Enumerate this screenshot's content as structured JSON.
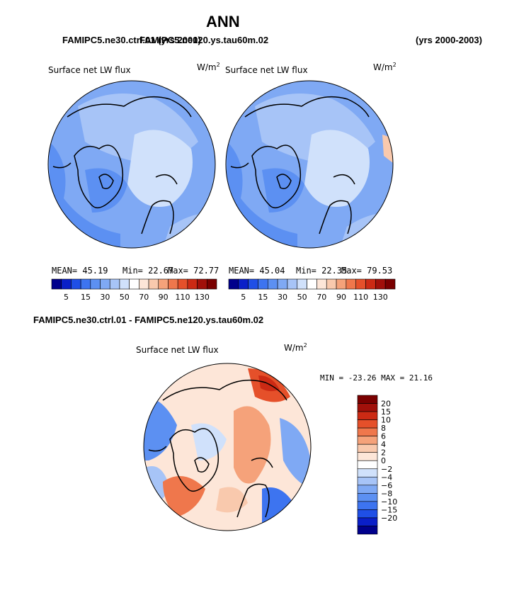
{
  "chart_data": {
    "type": "heatmap",
    "title": "ANN",
    "panels": [
      {
        "case_label": "FAMIPC5.ne30.ctrl.01 (yrs 2000)",
        "overprinted_label": "FAMIPC5.ne120.ys.tau60m.02",
        "variable": "Surface net LW flux",
        "units": "W/m",
        "units_exp": "2",
        "mean_text": "MEAN=  45.19",
        "min_text": "Min=  22.67",
        "max_text": "Max=  72.77",
        "mean": 45.19,
        "min": 22.67,
        "max": 72.77,
        "colorbar_ticks": [
          "5",
          "15",
          "30",
          "50",
          "70",
          "90",
          "110",
          "130"
        ]
      },
      {
        "case_label": "(yrs 2000-2003)",
        "variable": "Surface net LW flux",
        "units": "W/m",
        "units_exp": "2",
        "mean_text": "MEAN=  45.04",
        "min_text": "Min=  22.35",
        "max_text": "Max=  79.53",
        "mean": 45.04,
        "min": 22.35,
        "max": 79.53,
        "colorbar_ticks": [
          "5",
          "15",
          "30",
          "50",
          "70",
          "90",
          "110",
          "130"
        ]
      },
      {
        "case_label": "FAMIPC5.ne30.ctrl.01 - FAMIPC5.ne120.ys.tau60m.02",
        "variable": "Surface net LW flux",
        "units": "W/m",
        "units_exp": "2",
        "minmax_text": "MIN = -23.26 MAX =  21.16",
        "min": -23.26,
        "max": 21.16,
        "colorbar_labels": [
          "20",
          "15",
          "10",
          "8",
          "6",
          "4",
          "2",
          "0",
          "−2",
          "−4",
          "−6",
          "−8",
          "−10",
          "−15",
          "−20"
        ]
      }
    ],
    "abs_colors": [
      "#00008c",
      "#0a1fc8",
      "#1f4fe6",
      "#3d74f0",
      "#5c90f2",
      "#7fa9f4",
      "#a7c4f7",
      "#d0e1fb",
      "#ffffff",
      "#fde6d8",
      "#f9c9ad",
      "#f5a27a",
      "#ef774c",
      "#e5502a",
      "#cc2a14",
      "#a1100a",
      "#7a0000"
    ],
    "diff_colors": [
      "#7a0000",
      "#a1100a",
      "#cc2a14",
      "#e5502a",
      "#ef774c",
      "#f5a27a",
      "#f9c9ad",
      "#fde6d8",
      "#ffffff",
      "#d0e1fb",
      "#a7c4f7",
      "#7fa9f4",
      "#5c90f2",
      "#3d74f0",
      "#1f4fe6",
      "#0a1fc8",
      "#00008c"
    ]
  }
}
